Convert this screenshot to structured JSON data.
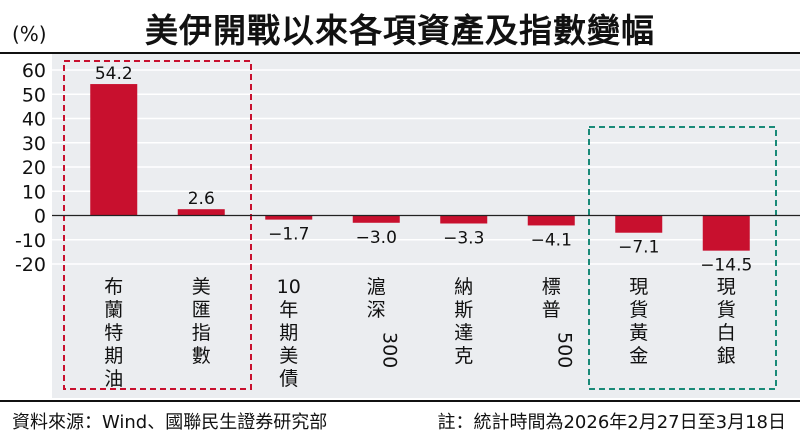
{
  "header": {
    "title": "美伊開戰以來各項資產及指數變幅",
    "unit": "(%)"
  },
  "footer": {
    "source": "資料來源：Wind、國聯民生證券研究部",
    "note": "註：統計時間為2026年2月27日至3月18日"
  },
  "colors": {
    "bar": "#c8102e",
    "highlight_red": "#c8102e",
    "highlight_teal": "#1a8a78",
    "plot_bg": "#ebedf0",
    "grid": "#ffffff"
  },
  "chart_data": {
    "type": "bar",
    "categories": [
      "布蘭特期油",
      "美匯指數",
      "10年期美債",
      "滬深300",
      "納斯達克",
      "標普500",
      "現貨黃金",
      "現貨白銀"
    ],
    "values": [
      54.2,
      2.6,
      -1.7,
      -3.0,
      -3.3,
      -4.1,
      -7.1,
      -14.5
    ],
    "value_labels": [
      "54.2",
      "2.6",
      "−1.7",
      "−3.0",
      "−3.3",
      "−4.1",
      "−7.1",
      "−14.5"
    ],
    "yticks": [
      60,
      50,
      40,
      30,
      20,
      10,
      0,
      -10,
      -20
    ],
    "ylim": [
      -20,
      60
    ],
    "ylabel": "(%)",
    "title": "美伊開戰以來各項資產及指數變幅",
    "grid": true,
    "highlight_groups": [
      {
        "categories": [
          "布蘭特期油",
          "美匯指數"
        ],
        "color": "red"
      },
      {
        "categories": [
          "現貨黃金",
          "現貨白銀"
        ],
        "color": "teal"
      }
    ]
  }
}
